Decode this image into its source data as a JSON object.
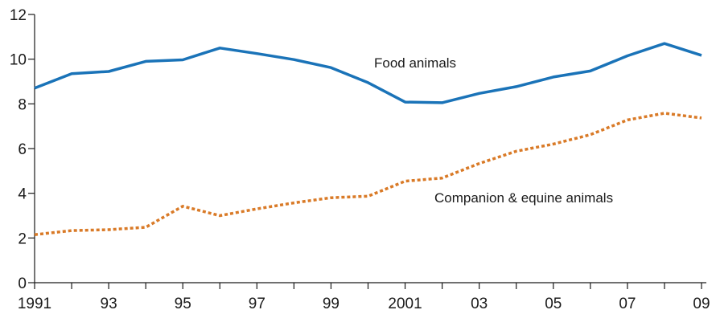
{
  "chart_data": {
    "type": "line",
    "x": [
      1991,
      1992,
      1993,
      1994,
      1995,
      1996,
      1997,
      1998,
      1999,
      2000,
      2001,
      2002,
      2003,
      2004,
      2005,
      2006,
      2007,
      2008,
      2009
    ],
    "x_tick_labels": [
      "1991",
      "93",
      "95",
      "97",
      "99",
      "2001",
      "03",
      "05",
      "07",
      "09"
    ],
    "x_tick_values": [
      1991,
      1993,
      1995,
      1997,
      1999,
      2001,
      2003,
      2005,
      2007,
      2009
    ],
    "y_ticks": [
      0,
      2,
      4,
      6,
      8,
      10,
      12
    ],
    "ylim": [
      0,
      12
    ],
    "xlim": [
      1991,
      2009
    ],
    "grid": false,
    "legend": "none",
    "series": [
      {
        "name": "Food animals",
        "color": "#1a73b8",
        "style": "solid",
        "values": [
          8.7,
          9.35,
          9.45,
          9.9,
          9.97,
          10.5,
          10.25,
          9.98,
          9.62,
          8.95,
          8.08,
          8.05,
          8.47,
          8.77,
          9.2,
          9.47,
          10.15,
          10.7,
          10.17
        ]
      },
      {
        "name": "Companion & equine animals",
        "color": "#d97a27",
        "style": "dotted",
        "values": [
          2.15,
          2.33,
          2.37,
          2.48,
          3.42,
          3.0,
          3.3,
          3.57,
          3.8,
          3.87,
          4.54,
          4.68,
          5.33,
          5.88,
          6.2,
          6.62,
          7.28,
          7.58,
          7.37
        ]
      }
    ]
  }
}
